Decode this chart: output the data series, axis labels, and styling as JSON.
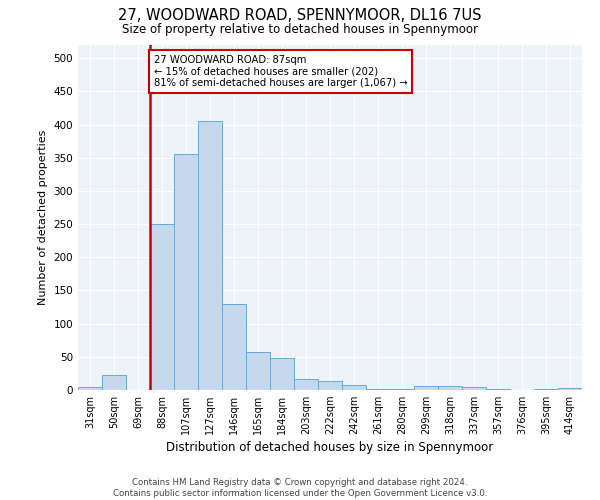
{
  "title": "27, WOODWARD ROAD, SPENNYMOOR, DL16 7US",
  "subtitle": "Size of property relative to detached houses in Spennymoor",
  "xlabel": "Distribution of detached houses by size in Spennymoor",
  "ylabel": "Number of detached properties",
  "bar_color": "#c5d8ee",
  "bar_edge_color": "#6aaad4",
  "background_color": "#eef2f9",
  "categories": [
    "31sqm",
    "50sqm",
    "69sqm",
    "88sqm",
    "107sqm",
    "127sqm",
    "146sqm",
    "165sqm",
    "184sqm",
    "203sqm",
    "222sqm",
    "242sqm",
    "261sqm",
    "280sqm",
    "299sqm",
    "318sqm",
    "337sqm",
    "357sqm",
    "376sqm",
    "395sqm",
    "414sqm"
  ],
  "values": [
    5,
    22,
    0,
    250,
    355,
    405,
    130,
    58,
    48,
    17,
    13,
    7,
    1,
    1,
    6,
    6,
    5,
    1,
    0,
    1,
    3
  ],
  "annotation_line1": "27 WOODWARD ROAD: 87sqm",
  "annotation_line2": "← 15% of detached houses are smaller (202)",
  "annotation_line3": "81% of semi-detached houses are larger (1,067) →",
  "annotation_box_color": "#ffffff",
  "annotation_box_edge_color": "#cc0000",
  "vline_color": "#cc0000",
  "footer_line1": "Contains HM Land Registry data © Crown copyright and database right 2024.",
  "footer_line2": "Contains public sector information licensed under the Open Government Licence v3.0.",
  "ylim": [
    0,
    520
  ],
  "yticks": [
    0,
    50,
    100,
    150,
    200,
    250,
    300,
    350,
    400,
    450,
    500
  ]
}
